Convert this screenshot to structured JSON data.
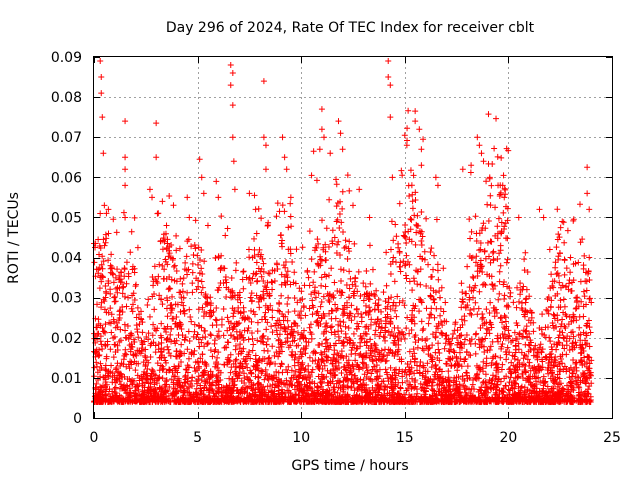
{
  "chart_data": {
    "type": "scatter",
    "title": "Day 296 of 2024, Rate Of TEC Index for receiver cblt",
    "xlabel": "GPS time / hours",
    "ylabel": "ROTI / TECUs",
    "xlim": [
      0,
      25
    ],
    "ylim": [
      0,
      0.09
    ],
    "xticks": [
      0,
      5,
      10,
      15,
      20,
      25
    ],
    "yticks": [
      0,
      0.01,
      0.02,
      0.03,
      0.04,
      0.05,
      0.06,
      0.07,
      0.08,
      0.09
    ],
    "xtick_labels": [
      "0",
      "5",
      "10",
      "15",
      "20",
      "25"
    ],
    "ytick_labels": [
      "0",
      "0.01",
      "0.02",
      "0.03",
      "0.04",
      "0.05",
      "0.06",
      "0.07",
      "0.08",
      "0.09"
    ],
    "grid": true,
    "marker": "+",
    "color": "#ff0000",
    "points": [
      [
        0.0,
        0.0435
      ],
      [
        0.05,
        0.0425
      ],
      [
        0.2,
        0.0445
      ],
      [
        0.3,
        0.089
      ],
      [
        0.35,
        0.085
      ],
      [
        0.35,
        0.081
      ],
      [
        0.4,
        0.075
      ],
      [
        0.45,
        0.066
      ],
      [
        0.5,
        0.053
      ],
      [
        0.6,
        0.051
      ],
      [
        0.7,
        0.046
      ],
      [
        0.8,
        0.038
      ],
      [
        1.5,
        0.074
      ],
      [
        1.5,
        0.065
      ],
      [
        1.5,
        0.062
      ],
      [
        1.5,
        0.058
      ],
      [
        1.5,
        0.05
      ],
      [
        2.7,
        0.057
      ],
      [
        2.8,
        0.055
      ],
      [
        3.0,
        0.0735
      ],
      [
        3.0,
        0.065
      ],
      [
        3.3,
        0.054
      ],
      [
        3.5,
        0.048
      ],
      [
        4.5,
        0.055
      ],
      [
        4.6,
        0.05
      ],
      [
        5.1,
        0.0645
      ],
      [
        5.2,
        0.06
      ],
      [
        5.3,
        0.056
      ],
      [
        5.5,
        0.048
      ],
      [
        5.9,
        0.059
      ],
      [
        6.0,
        0.055
      ],
      [
        6.6,
        0.088
      ],
      [
        6.6,
        0.083
      ],
      [
        6.7,
        0.086
      ],
      [
        6.7,
        0.078
      ],
      [
        6.7,
        0.07
      ],
      [
        6.75,
        0.064
      ],
      [
        6.8,
        0.057
      ],
      [
        7.5,
        0.056
      ],
      [
        7.8,
        0.052
      ],
      [
        8.2,
        0.084
      ],
      [
        8.2,
        0.07
      ],
      [
        8.3,
        0.068
      ],
      [
        8.3,
        0.062
      ],
      [
        9.1,
        0.07
      ],
      [
        9.2,
        0.065
      ],
      [
        9.3,
        0.062
      ],
      [
        9.5,
        0.055
      ],
      [
        10.5,
        0.0605
      ],
      [
        10.6,
        0.0665
      ],
      [
        10.9,
        0.067
      ],
      [
        11.0,
        0.077
      ],
      [
        11.0,
        0.072
      ],
      [
        11.1,
        0.07
      ],
      [
        11.4,
        0.066
      ],
      [
        11.8,
        0.074
      ],
      [
        11.9,
        0.071
      ],
      [
        12.0,
        0.067
      ],
      [
        12.5,
        0.053
      ],
      [
        12.8,
        0.057
      ],
      [
        13.3,
        0.05
      ],
      [
        14.2,
        0.089
      ],
      [
        14.2,
        0.085
      ],
      [
        14.3,
        0.083
      ],
      [
        14.3,
        0.075
      ],
      [
        14.4,
        0.06
      ],
      [
        15.0,
        0.0705
      ],
      [
        15.1,
        0.068
      ],
      [
        15.5,
        0.0765
      ],
      [
        15.5,
        0.074
      ],
      [
        15.7,
        0.072
      ],
      [
        15.8,
        0.067
      ],
      [
        15.8,
        0.063
      ],
      [
        16.5,
        0.06
      ],
      [
        16.6,
        0.058
      ],
      [
        17.8,
        0.062
      ],
      [
        18.2,
        0.063
      ],
      [
        18.5,
        0.07
      ],
      [
        18.6,
        0.068
      ],
      [
        18.7,
        0.066
      ],
      [
        18.8,
        0.064
      ],
      [
        19.1,
        0.06
      ],
      [
        19.5,
        0.058
      ],
      [
        19.8,
        0.055
      ],
      [
        20.5,
        0.05
      ],
      [
        21.5,
        0.052
      ],
      [
        21.7,
        0.05
      ],
      [
        22.6,
        0.049
      ],
      [
        23.0,
        0.04
      ],
      [
        23.8,
        0.0625
      ],
      [
        23.8,
        0.056
      ],
      [
        23.9,
        0.052
      ],
      [
        23.9,
        0.04
      ]
    ]
  }
}
